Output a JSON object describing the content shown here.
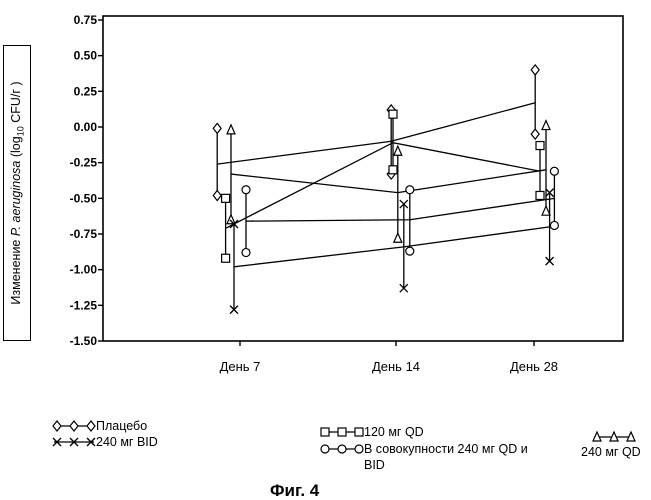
{
  "chart_data": {
    "type": "line",
    "ylabel": {
      "pre": "Изменение ",
      "italic": "P. aeruginosa",
      "mid": " (log",
      "sub": "10",
      "post": " CFU/г )"
    },
    "categories": [
      "День 7",
      "День 14",
      "День 28"
    ],
    "ylim": [
      -1.5,
      0.75
    ],
    "yticks": [
      "0.75",
      "0.50",
      "0.25",
      "0.00",
      "-0.25",
      "-0.50",
      "-0.75",
      "-1.00",
      "-1.25",
      "-1.50"
    ],
    "ytick_values": [
      0.75,
      0.5,
      0.25,
      0.0,
      -0.25,
      -0.5,
      -0.75,
      -1.0,
      -1.25,
      -1.5
    ],
    "grid": false,
    "legend_position": "bottom",
    "series": [
      {
        "name": "Плацебо",
        "marker": "diamond",
        "x_offsets": [
          -0.38,
          -0.08,
          0.02
        ],
        "mean": [
          -0.26,
          -0.1,
          0.17
        ],
        "lower": [
          -0.48,
          -0.33,
          -0.05
        ],
        "upper": [
          -0.01,
          0.12,
          0.4
        ]
      },
      {
        "name": "120 мг QD",
        "marker": "square",
        "x_offsets": [
          -0.24,
          -0.05,
          0.1
        ],
        "mean": [
          -0.71,
          -0.11,
          -0.31
        ],
        "lower": [
          -0.92,
          -0.3,
          -0.48
        ],
        "upper": [
          -0.5,
          0.09,
          -0.13
        ]
      },
      {
        "name": "240 мг QD",
        "marker": "triangle",
        "x_offsets": [
          -0.15,
          0.03,
          0.2
        ],
        "mean": [
          -0.33,
          -0.46,
          -0.3
        ],
        "lower": [
          -0.65,
          -0.78,
          -0.59
        ],
        "upper": [
          -0.02,
          -0.17,
          0.01
        ]
      },
      {
        "name": "240 мг BID",
        "marker": "x",
        "x_offsets": [
          -0.1,
          0.13,
          0.26
        ],
        "mean": [
          -0.98,
          -0.84,
          -0.7
        ],
        "lower": [
          -1.28,
          -1.13,
          -0.94
        ],
        "upper": [
          -0.68,
          -0.54,
          -0.46
        ]
      },
      {
        "name": "В совокупности 240 мг QD и BID",
        "marker": "circle",
        "x_offsets": [
          0.1,
          0.23,
          0.34
        ],
        "mean": [
          -0.66,
          -0.65,
          -0.5
        ],
        "lower": [
          -0.88,
          -0.87,
          -0.69
        ],
        "upper": [
          -0.44,
          -0.44,
          -0.31
        ]
      }
    ]
  },
  "legend": [
    {
      "label": "Плацебо",
      "marker": "diamond"
    },
    {
      "label": "240 мг BID",
      "marker": "x"
    },
    {
      "label": "120 мг QD",
      "marker": "square"
    },
    {
      "label_line1": "В совокупности 240 мг QD и",
      "label_line2": "BID",
      "marker": "circle"
    },
    {
      "label": "240 мг QD",
      "marker": "triangle"
    }
  ],
  "caption": "Фиг. 4"
}
